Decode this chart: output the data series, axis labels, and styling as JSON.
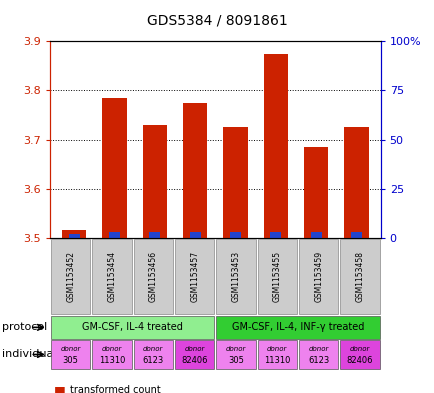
{
  "title": "GDS5384 / 8091861",
  "samples": [
    "GSM1153452",
    "GSM1153454",
    "GSM1153456",
    "GSM1153457",
    "GSM1153453",
    "GSM1153455",
    "GSM1153459",
    "GSM1153458"
  ],
  "red_values": [
    3.515,
    3.785,
    3.73,
    3.775,
    3.725,
    3.875,
    3.685,
    3.725
  ],
  "blue_heights": [
    0.008,
    0.012,
    0.012,
    0.012,
    0.012,
    0.012,
    0.012,
    0.012
  ],
  "ymin": 3.5,
  "ymax": 3.9,
  "y_ticks": [
    3.5,
    3.6,
    3.7,
    3.8,
    3.9
  ],
  "y2_ticks": [
    0,
    25,
    50,
    75,
    100
  ],
  "protocols": [
    {
      "label": "GM-CSF, IL-4 treated",
      "start": 0,
      "end": 4,
      "color": "#90ee90"
    },
    {
      "label": "GM-CSF, IL-4, INF-γ treated",
      "start": 4,
      "end": 8,
      "color": "#32cd32"
    }
  ],
  "donors": [
    "305",
    "11310",
    "6123",
    "82406",
    "305",
    "11310",
    "6123",
    "82406"
  ],
  "donor_colors": [
    "#ee82ee",
    "#ee82ee",
    "#ee82ee",
    "#dd44dd",
    "#ee82ee",
    "#ee82ee",
    "#ee82ee",
    "#dd44dd"
  ],
  "bar_color": "#cc2200",
  "blue_color": "#2244cc",
  "base": 3.5,
  "left_axis_color": "#cc2200",
  "right_axis_color": "#0000cc",
  "bar_width": 0.6
}
